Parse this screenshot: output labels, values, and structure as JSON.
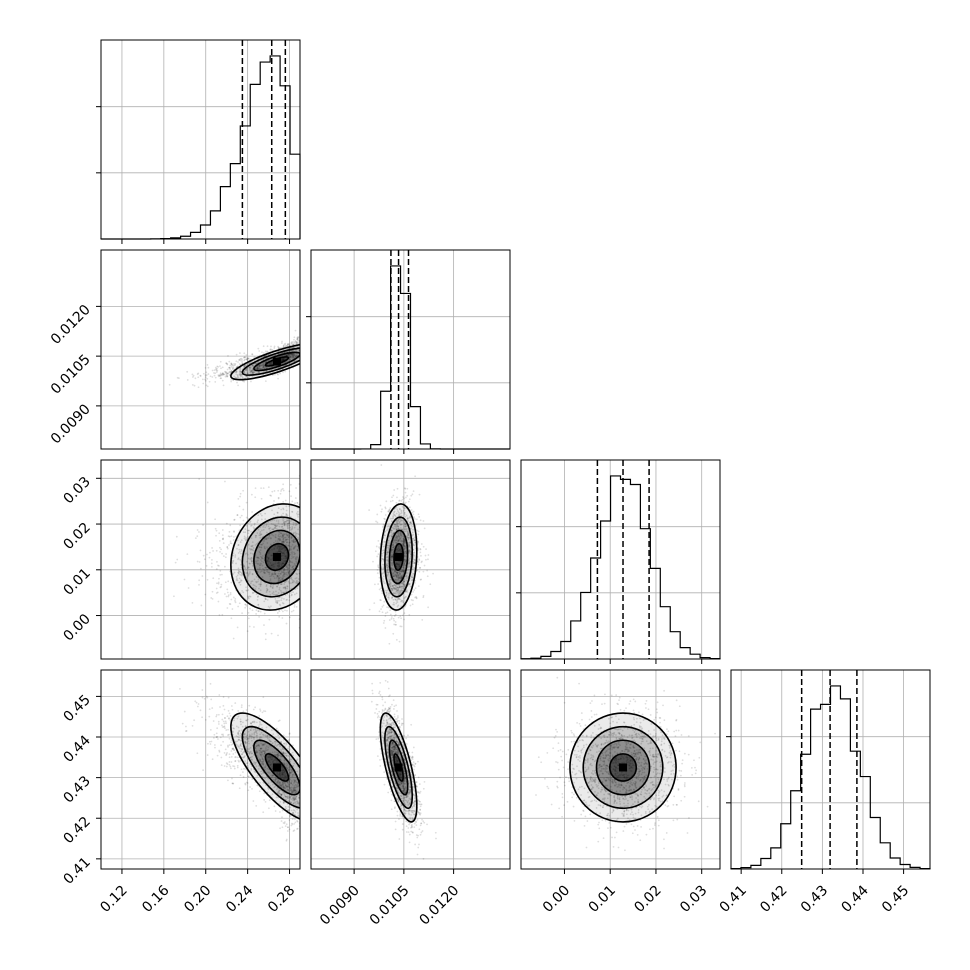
{
  "chart_data": {
    "type": "corner",
    "parameters": [
      {
        "id": "p0",
        "range": [
          0.1,
          0.29
        ],
        "ticks": [
          0.12,
          0.16,
          0.2,
          0.24,
          0.28
        ],
        "tick_labels": [
          "0.12",
          "0.16",
          "0.20",
          "0.24",
          "0.28"
        ],
        "quantiles": [
          0.235,
          0.263,
          0.276
        ],
        "mode": 0.268,
        "sigma_lo": 0.03,
        "sigma_hi": 0.014
      },
      {
        "id": "p1",
        "range": [
          0.0077,
          0.0137
        ],
        "ticks": [
          0.009,
          0.0105,
          0.012
        ],
        "tick_labels": [
          "0.0090",
          "0.0105",
          "0.0120"
        ],
        "quantiles": [
          0.01011,
          0.01034,
          0.01064
        ],
        "mode": 0.01034,
        "sigma_lo": 0.00025,
        "sigma_hi": 0.0003
      },
      {
        "id": "p2",
        "range": [
          -0.0095,
          0.034
        ],
        "ticks": [
          0.0,
          0.01,
          0.02,
          0.03
        ],
        "tick_labels": [
          "0.00",
          "0.01",
          "0.02",
          "0.03"
        ],
        "quantiles": [
          0.0072,
          0.0128,
          0.0185
        ],
        "mode": 0.0128,
        "sigma_lo": 0.0058,
        "sigma_hi": 0.0058
      },
      {
        "id": "p3",
        "range": [
          0.4075,
          0.4565
        ],
        "ticks": [
          0.41,
          0.42,
          0.43,
          0.44,
          0.45
        ],
        "tick_labels": [
          "0.41",
          "0.42",
          "0.43",
          "0.44",
          "0.45"
        ],
        "quantiles": [
          0.4249,
          0.4319,
          0.4385
        ],
        "mode": 0.4325,
        "sigma_lo": 0.0068,
        "sigma_hi": 0.0066
      }
    ],
    "correlations": {
      "1-0": 0.8,
      "2-0": 0.15,
      "2-1": 0.12,
      "3-0": -0.75,
      "3-1": -0.7,
      "3-2": 0.0
    },
    "contour_levels_sigma": [
      0.5,
      1.0,
      1.5,
      2.0
    ],
    "grid": true
  }
}
